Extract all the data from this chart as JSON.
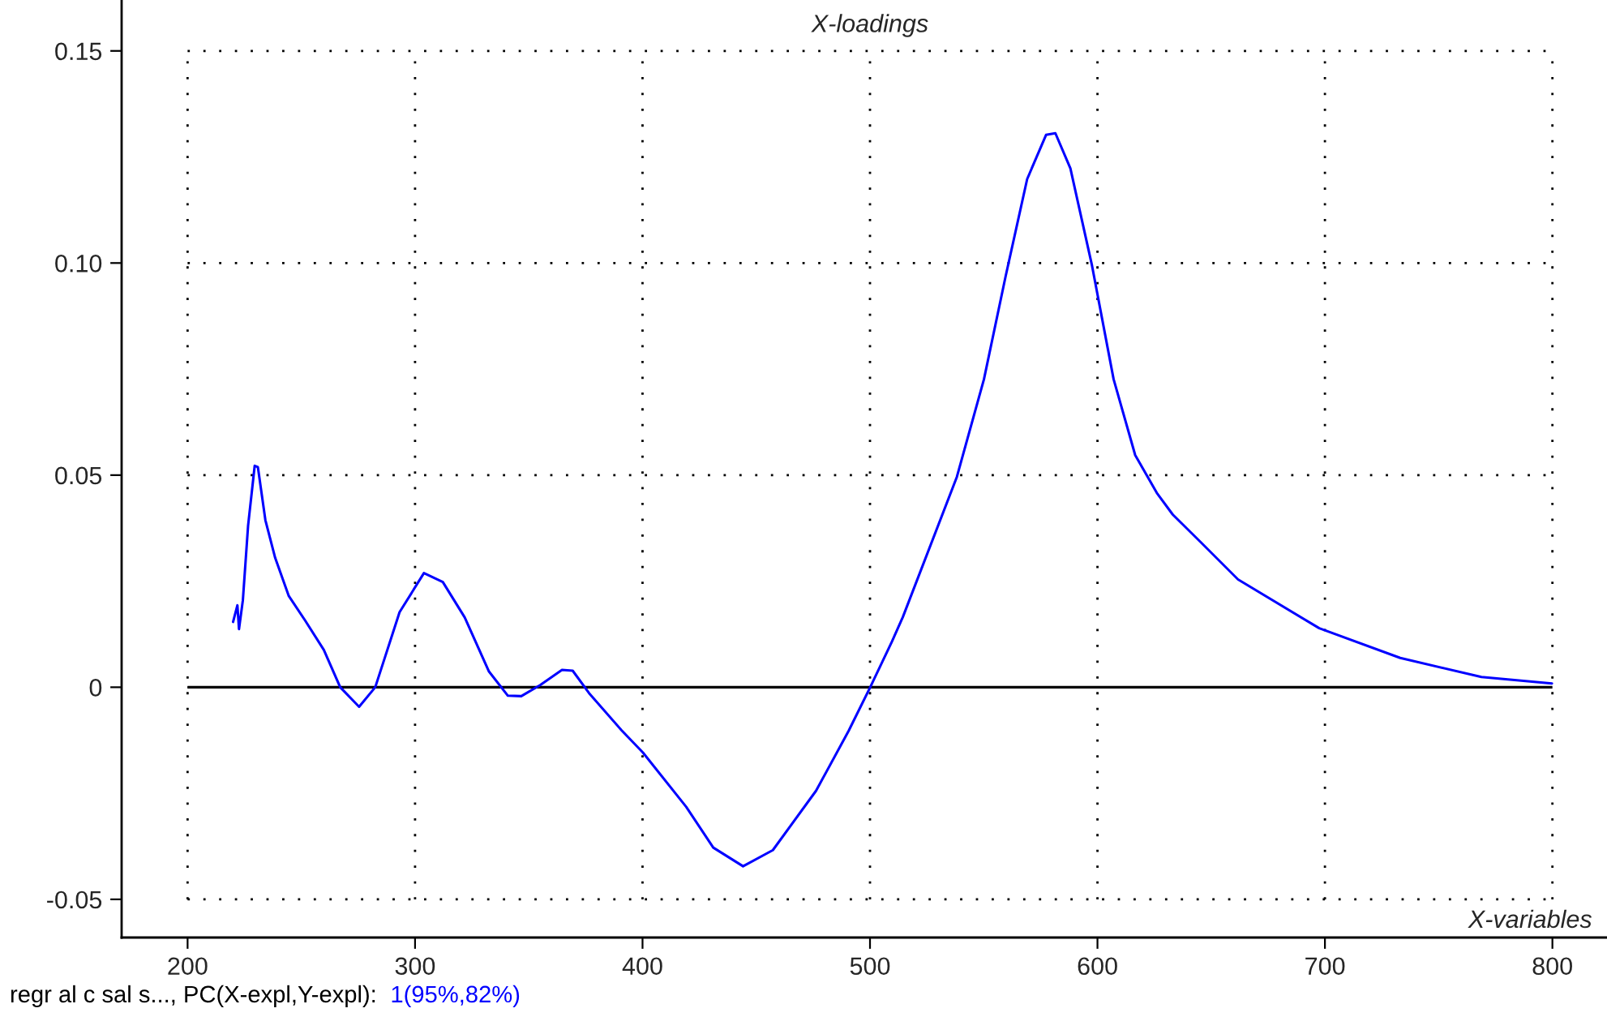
{
  "chart_data": {
    "type": "line",
    "title": "X-loadings",
    "xlabel": "X-variables",
    "annotations": [
      "regr al c sal s..., PC(X-expl,Y-expl):",
      "1(95%,82%)"
    ],
    "series": [
      {
        "color": "#0000ff",
        "x": [
          220.0,
          221.9,
          222.6,
          224.3,
          226.6,
          229.5,
          230.9,
          234.2,
          238.5,
          244.5,
          251.6,
          259.9,
          267.1,
          275.4,
          282.5,
          293.2,
          303.9,
          312.2,
          321.8,
          332.5,
          340.8,
          346.7,
          355.0,
          364.6,
          369.3,
          376.5,
          390.7,
          400.2,
          419.2,
          431.1,
          444.2,
          457.3,
          476.3,
          490.6,
          500.1,
          509.6,
          514.4,
          538.2,
          550.1,
          559.6,
          569.1,
          577.4,
          581.5,
          588.1,
          597.6,
          607.1,
          616.6,
          626.1,
          633.1,
          645.2,
          661.8,
          697.5,
          733.1,
          768.8,
          799.8
        ],
        "values": [
          0.0154,
          0.0193,
          0.0137,
          0.0205,
          0.0381,
          0.0522,
          0.0519,
          0.0394,
          0.0305,
          0.0215,
          0.0158,
          0.0088,
          0.0,
          -0.0046,
          0.0,
          0.0177,
          0.0269,
          0.0248,
          0.0165,
          0.0037,
          -0.002,
          -0.0021,
          0.0005,
          0.0041,
          0.0039,
          -0.0014,
          -0.0101,
          -0.0154,
          -0.0282,
          -0.0378,
          -0.0422,
          -0.0384,
          -0.0244,
          -0.0103,
          0.0,
          0.0107,
          0.0165,
          0.0496,
          0.0726,
          0.0968,
          0.1198,
          0.1302,
          0.1306,
          0.1223,
          0.0994,
          0.0726,
          0.0547,
          0.0458,
          0.0407,
          0.0343,
          0.0254,
          0.0139,
          0.0069,
          0.0024,
          0.0009
        ]
      }
    ],
    "xlim": [
      171,
      824
    ],
    "ylim": [
      -0.059,
      0.162
    ],
    "xticks": [
      200,
      300,
      400,
      500,
      600,
      700,
      800
    ],
    "yticks": [
      {
        "value": -0.05,
        "label": "-0.05"
      },
      {
        "value": 0,
        "label": "0"
      },
      {
        "value": 0.05,
        "label": "0.05"
      },
      {
        "value": 0.1,
        "label": "0.10"
      },
      {
        "value": 0.15,
        "label": "0.15"
      }
    ],
    "ref_lines": [
      {
        "axis": "y",
        "value": 0,
        "color": "#000000"
      }
    ],
    "grid": true,
    "legend": false,
    "marker": "none",
    "line_style": "solid"
  }
}
